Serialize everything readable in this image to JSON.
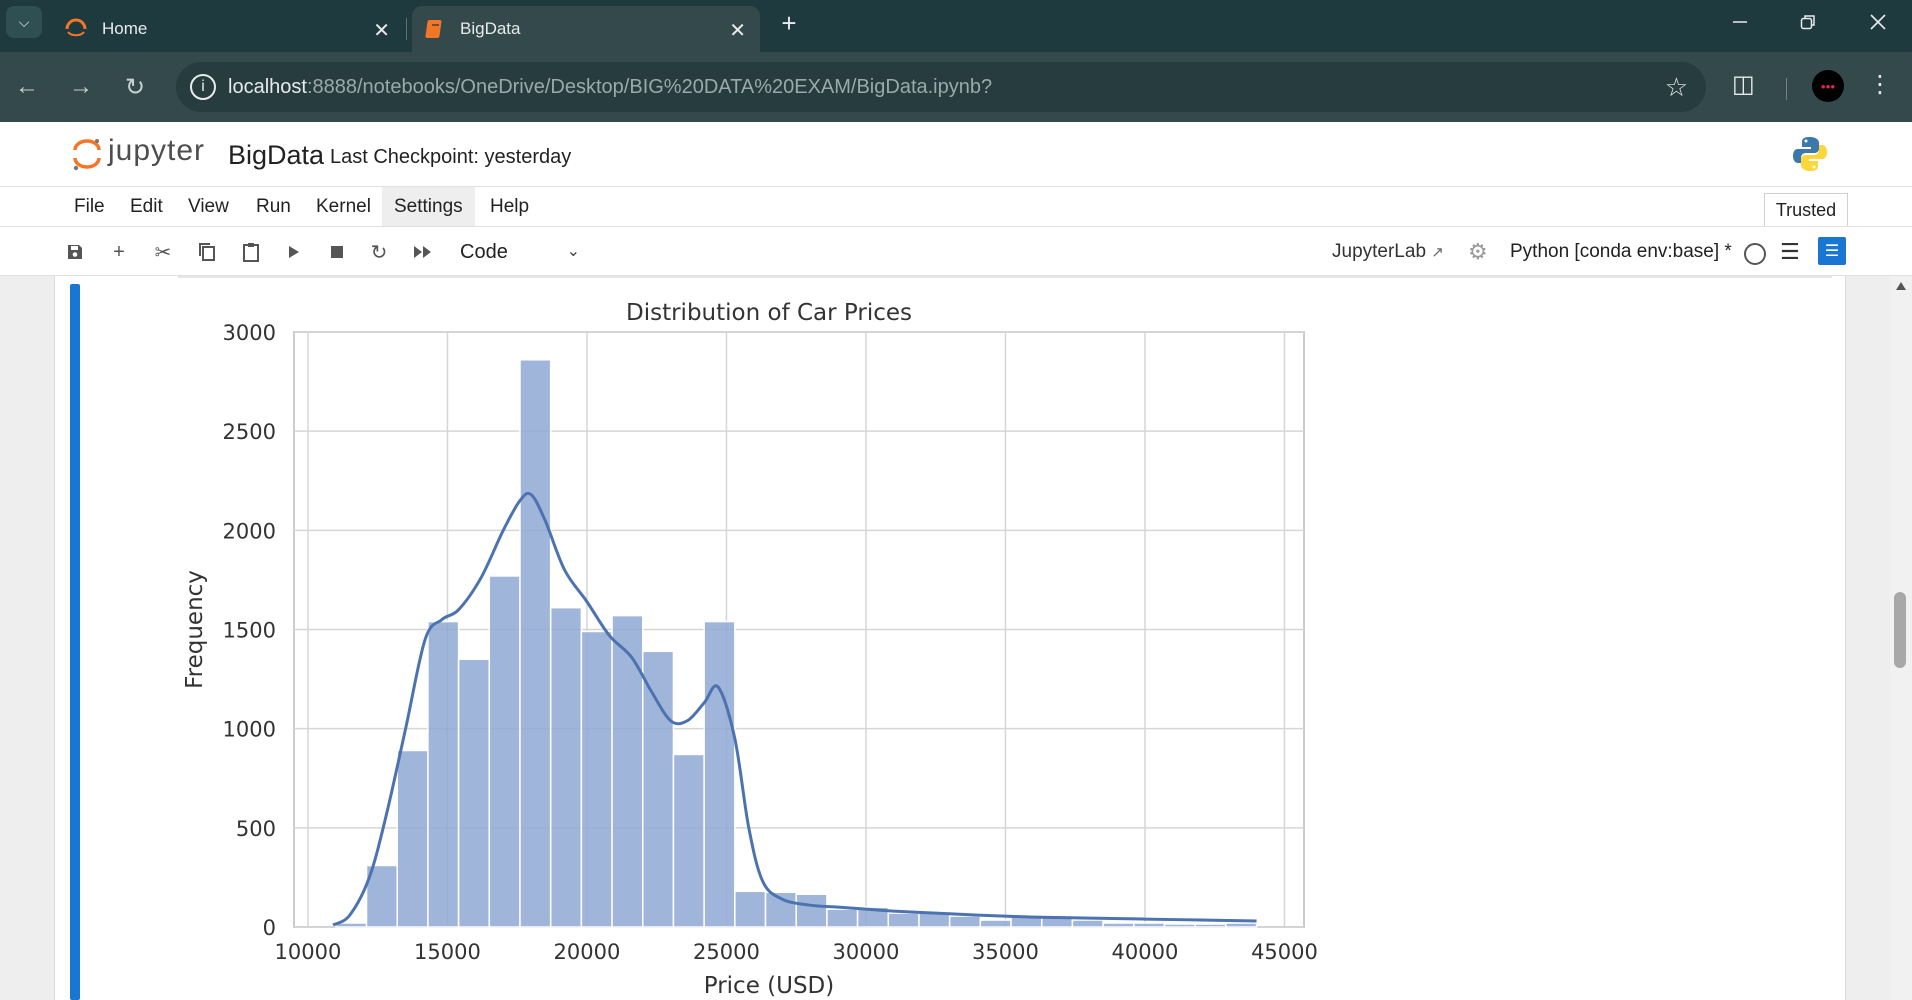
{
  "browser": {
    "tabs": [
      {
        "title": "Home",
        "active": false
      },
      {
        "title": "BigData",
        "active": true
      }
    ],
    "address": {
      "host": "localhost",
      "path": ":8888/notebooks/OneDrive/Desktop/BIG%20DATA%20EXAM/BigData.ipynb?"
    }
  },
  "jupyter": {
    "wordmark": "jupyter",
    "notebook_name": "BigData",
    "checkpoint": "Last Checkpoint: yesterday",
    "menu": [
      "File",
      "Edit",
      "View",
      "Run",
      "Kernel",
      "Settings",
      "Help"
    ],
    "trusted": "Trusted",
    "cell_type": "Code",
    "jupyterlab_link": "JupyterLab",
    "kernel": "Python [conda env:base] *"
  },
  "chart_data": {
    "type": "bar",
    "title": "Distribution of Car Prices",
    "xlabel": "Price (USD)",
    "ylabel": "Frequency",
    "xlim": [
      9500,
      45700
    ],
    "ylim": [
      0,
      3000
    ],
    "xticks": [
      "10000",
      "15000",
      "20000",
      "25000",
      "30000",
      "35000",
      "40000",
      "45000"
    ],
    "yticks": [
      "0",
      "500",
      "1000",
      "1500",
      "2000",
      "2500",
      "3000"
    ],
    "grid": true,
    "bar_color": "#8fa8d3",
    "kde_color": "#4c72b0",
    "bins": {
      "start": 11000,
      "width": 1100,
      "counts": [
        20,
        310,
        890,
        1540,
        1350,
        1770,
        2860,
        1610,
        1490,
        1570,
        1390,
        870,
        1540,
        180,
        175,
        165,
        90,
        100,
        70,
        75,
        55,
        35,
        60,
        50,
        35,
        20,
        20,
        15,
        15,
        20
      ]
    },
    "kde": {
      "x": [
        10900,
        11500,
        12200,
        12800,
        13500,
        14200,
        14800,
        15400,
        16200,
        17000,
        17600,
        18000,
        18500,
        19200,
        20000,
        20800,
        21600,
        22300,
        23000,
        23600,
        24200,
        24700,
        25300,
        25800,
        26300,
        27000,
        28000,
        29000,
        30000,
        31000,
        32500,
        34000,
        36000,
        38000,
        40000,
        42000,
        44000
      ],
      "y": [
        10,
        60,
        250,
        560,
        1000,
        1450,
        1550,
        1600,
        1760,
        2000,
        2150,
        2180,
        2050,
        1800,
        1640,
        1470,
        1360,
        1190,
        1040,
        1040,
        1130,
        1210,
        950,
        500,
        230,
        140,
        110,
        100,
        90,
        80,
        70,
        60,
        50,
        45,
        40,
        35,
        30
      ]
    }
  }
}
